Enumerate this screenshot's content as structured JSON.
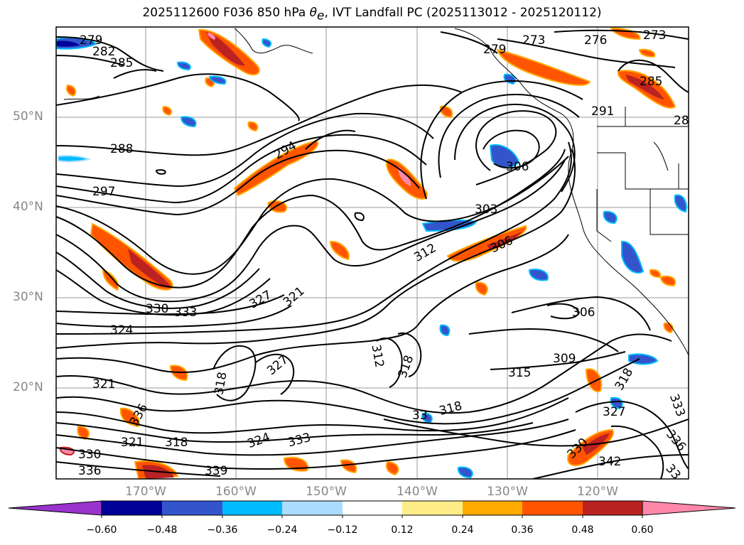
{
  "title": {
    "run": "2025112600",
    "forecast": "F036",
    "level": "850 hPa",
    "variable_symbol": "θ",
    "variable_sub": "e",
    "rest": ", IVT Landfall PC (2025113012 - 2025120112)"
  },
  "lat_labels": [
    "50°N",
    "40°N",
    "30°N",
    "20°N"
  ],
  "lon_labels": [
    "170°W",
    "160°W",
    "150°W",
    "140°W",
    "130°W",
    "120°W"
  ],
  "colorbar": {
    "ticks": [
      "−0.60",
      "−0.48",
      "−0.36",
      "−0.24",
      "−0.12",
      "0.12",
      "0.24",
      "0.36",
      "0.48",
      "0.60"
    ],
    "colors": [
      "#9933cc",
      "#000099",
      "#3355cc",
      "#00bbff",
      "#aaddff",
      "#ffffff",
      "#ffee88",
      "#ffaa00",
      "#ff5500",
      "#bb2222",
      "#ff88aa"
    ]
  },
  "contour_labels": [
    "279",
    "282",
    "285",
    "288",
    "297",
    "294",
    "273",
    "276",
    "273",
    "279",
    "285",
    "291",
    "28",
    "306",
    "303",
    "312",
    "306",
    "327",
    "321",
    "330",
    "333",
    "324",
    "321",
    "327",
    "318",
    "336",
    "321",
    "318",
    "324",
    "330",
    "339",
    "333",
    "336",
    "312",
    "318",
    "318",
    "33",
    "315",
    "309",
    "306",
    "318",
    "327",
    "333",
    "336",
    "342",
    "33",
    "330"
  ]
}
